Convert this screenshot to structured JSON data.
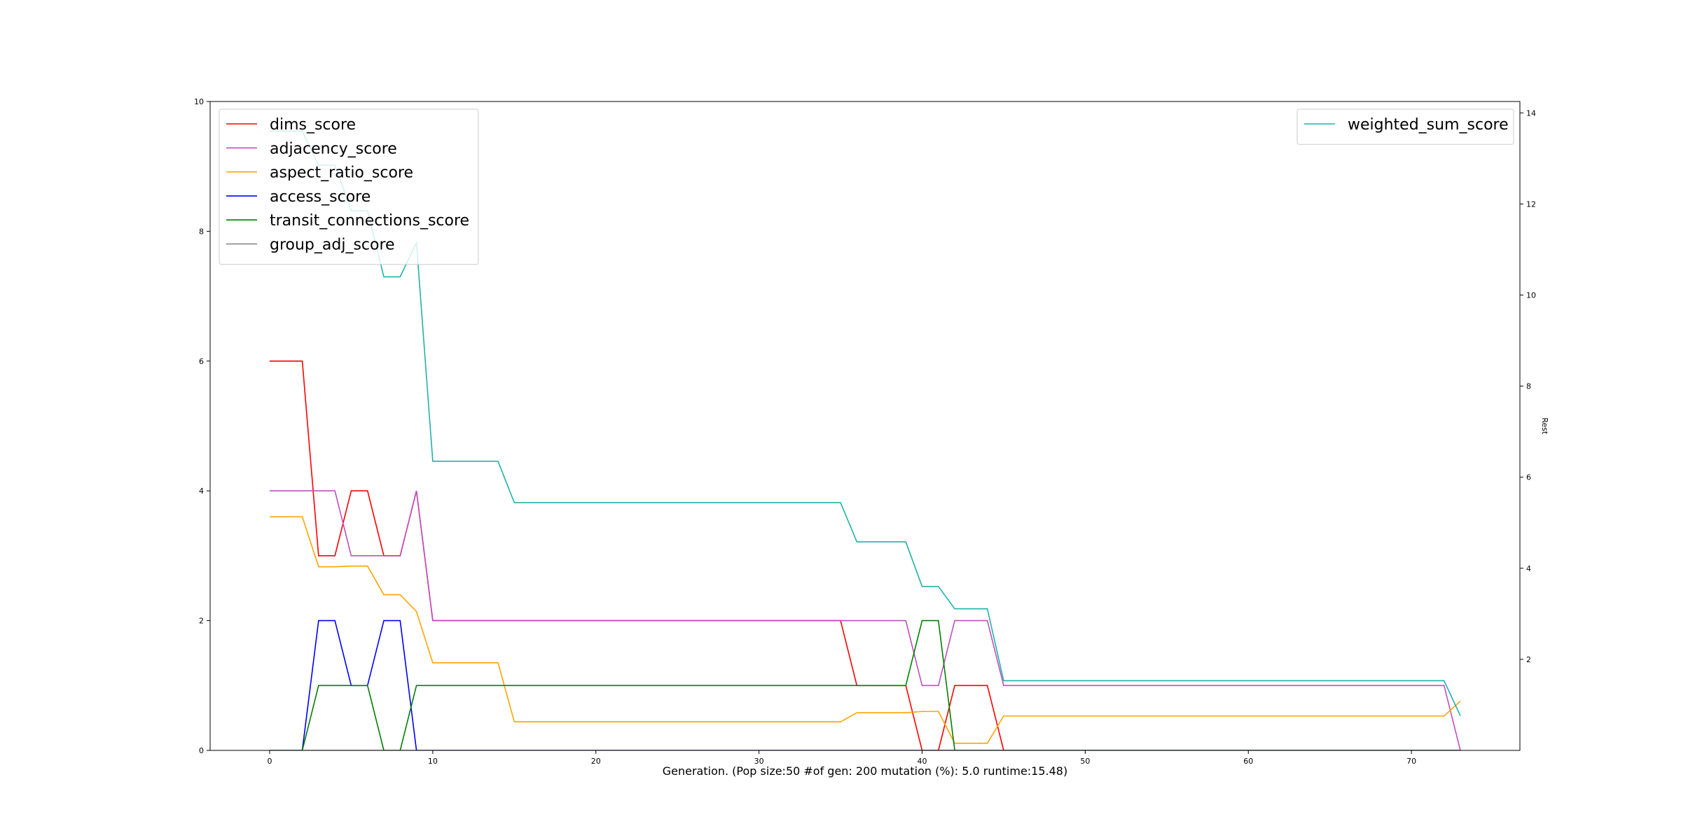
{
  "chart_data": {
    "type": "line",
    "xlabel": "Generation. (Pop size:50 #of gen: 200 mutation (%): 5.0 runtime:15.48)",
    "ylabel": "",
    "y2label": "Rest",
    "xlim": [
      -3.65,
      76.65
    ],
    "ylim": [
      0,
      10
    ],
    "y2lim": [
      0,
      14.25
    ],
    "xticks": [
      "0",
      "10",
      "20",
      "30",
      "40",
      "50",
      "60",
      "70"
    ],
    "yticks": [
      "0",
      "2",
      "4",
      "6",
      "8",
      "10"
    ],
    "y2ticks": [
      "2",
      "4",
      "6",
      "8",
      "10",
      "12",
      "14"
    ],
    "grid": false,
    "legend_left": "top-left",
    "legend_right": "top-right",
    "x": [
      0,
      1,
      2,
      3,
      4,
      5,
      6,
      7,
      8,
      9,
      10,
      11,
      12,
      13,
      14,
      15,
      16,
      17,
      18,
      19,
      20,
      21,
      22,
      23,
      24,
      25,
      26,
      27,
      28,
      29,
      30,
      31,
      32,
      33,
      34,
      35,
      36,
      37,
      38,
      39,
      40,
      41,
      42,
      43,
      44,
      45,
      46,
      47,
      48,
      49,
      50,
      51,
      52,
      53,
      54,
      55,
      56,
      57,
      58,
      59,
      60,
      61,
      62,
      63,
      64,
      65,
      66,
      67,
      68,
      69,
      70,
      71,
      72,
      73
    ],
    "series": [
      {
        "name": "dims_score",
        "axis": "left",
        "color": "#ff0000",
        "values": [
          6,
          6,
          6,
          3,
          3,
          4,
          4,
          3,
          3,
          4,
          2,
          2,
          2,
          2,
          2,
          2,
          2,
          2,
          2,
          2,
          2,
          2,
          2,
          2,
          2,
          2,
          2,
          2,
          2,
          2,
          2,
          2,
          2,
          2,
          2,
          2,
          1,
          1,
          1,
          1,
          0,
          0,
          1,
          1,
          1,
          0,
          0,
          0,
          0,
          0,
          0,
          0,
          0,
          0,
          0,
          0,
          0,
          0,
          0,
          0,
          0,
          0,
          0,
          0,
          0,
          0,
          0,
          0,
          0,
          0,
          0,
          0,
          0,
          0
        ]
      },
      {
        "name": "adjacency_score",
        "axis": "left",
        "color": "#bf4fbf",
        "values": [
          4,
          4,
          4,
          4,
          4,
          3,
          3,
          3,
          3,
          4,
          2,
          2,
          2,
          2,
          2,
          2,
          2,
          2,
          2,
          2,
          2,
          2,
          2,
          2,
          2,
          2,
          2,
          2,
          2,
          2,
          2,
          2,
          2,
          2,
          2,
          2,
          2,
          2,
          2,
          2,
          1,
          1,
          2,
          2,
          2,
          1,
          1,
          1,
          1,
          1,
          1,
          1,
          1,
          1,
          1,
          1,
          1,
          1,
          1,
          1,
          1,
          1,
          1,
          1,
          1,
          1,
          1,
          1,
          1,
          1,
          1,
          1,
          1,
          0
        ]
      },
      {
        "name": "aspect_ratio_score",
        "axis": "left",
        "color": "#ffa500",
        "values": [
          3.6,
          3.6,
          3.6,
          2.83,
          2.83,
          2.84,
          2.84,
          2.4,
          2.4,
          2.14,
          1.35,
          1.35,
          1.35,
          1.35,
          1.35,
          0.44,
          0.44,
          0.44,
          0.44,
          0.44,
          0.44,
          0.44,
          0.44,
          0.44,
          0.44,
          0.44,
          0.44,
          0.44,
          0.44,
          0.44,
          0.44,
          0.44,
          0.44,
          0.44,
          0.44,
          0.44,
          0.58,
          0.58,
          0.58,
          0.58,
          0.6,
          0.6,
          0.11,
          0.11,
          0.11,
          0.53,
          0.53,
          0.53,
          0.53,
          0.53,
          0.53,
          0.53,
          0.53,
          0.53,
          0.53,
          0.53,
          0.53,
          0.53,
          0.53,
          0.53,
          0.53,
          0.53,
          0.53,
          0.53,
          0.53,
          0.53,
          0.53,
          0.53,
          0.53,
          0.53,
          0.53,
          0.53,
          0.53,
          0.76
        ]
      },
      {
        "name": "access_score",
        "axis": "left",
        "color": "#0000ff",
        "values": [
          0,
          0,
          0,
          2,
          2,
          1,
          1,
          2,
          2,
          0,
          0,
          0,
          0,
          0,
          0,
          0,
          0,
          0,
          0,
          0,
          0,
          0,
          0,
          0,
          0,
          0,
          0,
          0,
          0,
          0,
          0,
          0,
          0,
          0,
          0,
          0,
          0,
          0,
          0,
          0,
          0,
          0,
          0,
          0,
          0,
          0,
          0,
          0,
          0,
          0,
          0,
          0,
          0,
          0,
          0,
          0,
          0,
          0,
          0,
          0,
          0,
          0,
          0,
          0,
          0,
          0,
          0,
          0,
          0,
          0,
          0,
          0,
          0,
          0
        ]
      },
      {
        "name": "transit_connections_score",
        "axis": "left",
        "color": "#008000",
        "values": [
          0,
          0,
          0,
          1,
          1,
          1,
          1,
          0,
          0,
          1,
          1,
          1,
          1,
          1,
          1,
          1,
          1,
          1,
          1,
          1,
          1,
          1,
          1,
          1,
          1,
          1,
          1,
          1,
          1,
          1,
          1,
          1,
          1,
          1,
          1,
          1,
          1,
          1,
          1,
          1,
          2,
          2,
          0,
          0,
          0,
          0,
          0,
          0,
          0,
          0,
          0,
          0,
          0,
          0,
          0,
          0,
          0,
          0,
          0,
          0,
          0,
          0,
          0,
          0,
          0,
          0,
          0,
          0,
          0,
          0,
          0,
          0,
          0,
          0
        ]
      },
      {
        "name": "group_adj_score",
        "axis": "left",
        "color": "#808080",
        "values": [
          0,
          0,
          0,
          0,
          0,
          0,
          0,
          0,
          0,
          0,
          0,
          0,
          0,
          0,
          0,
          0,
          0,
          0,
          0,
          0,
          0,
          0,
          0,
          0,
          0,
          0,
          0,
          0,
          0,
          0,
          0,
          0,
          0,
          0,
          0,
          0,
          0,
          0,
          0,
          0,
          0,
          0,
          0,
          0,
          0,
          0,
          0,
          0,
          0,
          0,
          0,
          0,
          0,
          0,
          0,
          0,
          0,
          0,
          0,
          0,
          0,
          0,
          0,
          0,
          0,
          0,
          0,
          0,
          0,
          0,
          0,
          0,
          0,
          0
        ]
      },
      {
        "name": "weighted_sum_score",
        "axis": "right",
        "color": "#20b2aa",
        "values": [
          13.6,
          13.6,
          13.6,
          12.85,
          12.85,
          11.85,
          11.85,
          10.4,
          10.4,
          11.15,
          6.35,
          6.35,
          6.35,
          6.35,
          6.35,
          5.44,
          5.44,
          5.44,
          5.44,
          5.44,
          5.44,
          5.44,
          5.44,
          5.44,
          5.44,
          5.44,
          5.44,
          5.44,
          5.44,
          5.44,
          5.44,
          5.44,
          5.44,
          5.44,
          5.44,
          5.44,
          4.58,
          4.58,
          4.58,
          4.58,
          3.6,
          3.6,
          3.11,
          3.11,
          3.11,
          1.53,
          1.53,
          1.53,
          1.53,
          1.53,
          1.53,
          1.53,
          1.53,
          1.53,
          1.53,
          1.53,
          1.53,
          1.53,
          1.53,
          1.53,
          1.53,
          1.53,
          1.53,
          1.53,
          1.53,
          1.53,
          1.53,
          1.53,
          1.53,
          1.53,
          1.53,
          1.53,
          1.53,
          0.76
        ]
      }
    ]
  }
}
